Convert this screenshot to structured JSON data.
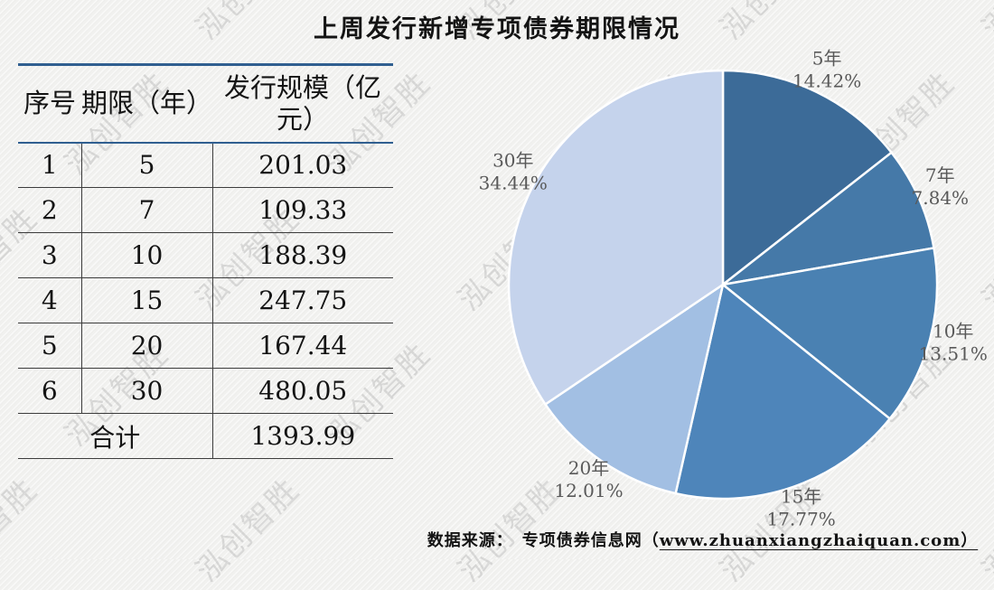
{
  "title": "上周发行新增专项债券期限情况",
  "watermark": {
    "text": "泓创智胜"
  },
  "table": {
    "headers": [
      "序号",
      "期限（年）",
      "发行规模（亿元）"
    ],
    "rows": [
      [
        "1",
        "5",
        "201.03"
      ],
      [
        "2",
        "7",
        "109.33"
      ],
      [
        "3",
        "10",
        "188.39"
      ],
      [
        "4",
        "15",
        "247.75"
      ],
      [
        "5",
        "20",
        "167.44"
      ],
      [
        "6",
        "30",
        "480.05"
      ]
    ],
    "total_label": "合计",
    "total_value": "1393.99"
  },
  "chart_data": {
    "type": "pie",
    "title": "上周发行新增专项债券期限情况",
    "categories": [
      "5年",
      "7年",
      "10年",
      "15年",
      "20年",
      "30年"
    ],
    "values_yi_yuan": [
      201.03,
      109.33,
      188.39,
      247.75,
      167.44,
      480.05
    ],
    "percents": [
      14.42,
      7.84,
      13.51,
      17.77,
      12.01,
      34.44
    ],
    "percent_labels": [
      "14.42%",
      "7.84%",
      "13.51%",
      "17.77%",
      "12.01%",
      "34.44%"
    ],
    "colors": [
      "#3c6b98",
      "#4579a8",
      "#4a81b2",
      "#4e85ba",
      "#a2bfe3",
      "#c5d3ec"
    ],
    "start_angle_deg": -90,
    "direction": "clockwise",
    "legend_position": "none",
    "label_color": "#595959",
    "slice_border_color": "#ffffff"
  },
  "source": {
    "prefix": "数据来源：　专项债券信息网（",
    "url": "www.zhuanxiangzhaiquan.com）"
  },
  "accent_colors": {
    "table_rule_blue": "#305f90",
    "table_rule_dark": "#3c3c3c"
  }
}
